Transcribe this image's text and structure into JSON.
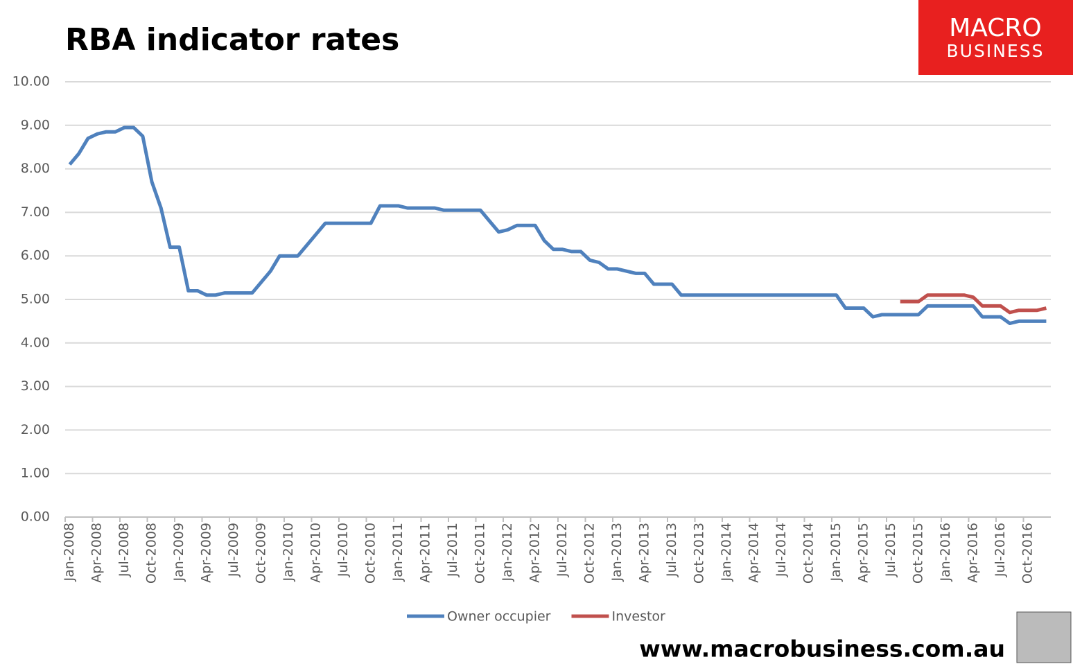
{
  "chart_data": {
    "type": "line",
    "title": "RBA indicator rates",
    "brand": {
      "line1": "MACRO",
      "line2": "BUSINESS"
    },
    "footer": "www.macrobusiness.com.au",
    "categories": [
      "Jan-2008",
      null,
      null,
      "Apr-2008",
      null,
      null,
      "Jul-2008",
      null,
      null,
      "Oct-2008",
      null,
      null,
      "Jan-2009",
      null,
      null,
      "Apr-2009",
      null,
      null,
      "Jul-2009",
      null,
      null,
      "Oct-2009",
      null,
      null,
      "Jan-2010",
      null,
      null,
      "Apr-2010",
      null,
      null,
      "Jul-2010",
      null,
      null,
      "Oct-2010",
      null,
      null,
      "Jan-2011",
      null,
      null,
      "Apr-2011",
      null,
      null,
      "Jul-2011",
      null,
      null,
      "Oct-2011",
      null,
      null,
      "Jan-2012",
      null,
      null,
      "Apr-2012",
      null,
      null,
      "Jul-2012",
      null,
      null,
      "Oct-2012",
      null,
      null,
      "Jan-2013",
      null,
      null,
      "Apr-2013",
      null,
      null,
      "Jul-2013",
      null,
      null,
      "Oct-2013",
      null,
      null,
      "Jan-2014",
      null,
      null,
      "Apr-2014",
      null,
      null,
      "Jul-2014",
      null,
      null,
      "Oct-2014",
      null,
      null,
      "Jan-2015",
      null,
      null,
      "Apr-2015",
      null,
      null,
      "Jul-2015",
      null,
      null,
      "Oct-2015",
      null,
      null,
      "Jan-2016",
      null,
      null,
      "Apr-2016",
      null,
      null,
      "Jul-2016",
      null,
      null,
      "Oct-2016",
      null,
      null
    ],
    "series": [
      {
        "name": "Owner occupier",
        "color": "#4f81bd",
        "values": [
          8.1,
          8.35,
          8.7,
          8.8,
          8.85,
          8.85,
          8.95,
          8.95,
          8.75,
          7.7,
          7.1,
          6.2,
          6.2,
          5.2,
          5.2,
          5.1,
          5.1,
          5.15,
          5.15,
          5.15,
          5.15,
          5.4,
          5.65,
          6.0,
          6.0,
          6.0,
          6.25,
          6.5,
          6.75,
          6.75,
          6.75,
          6.75,
          6.75,
          6.75,
          7.15,
          7.15,
          7.15,
          7.1,
          7.1,
          7.1,
          7.1,
          7.05,
          7.05,
          7.05,
          7.05,
          7.05,
          6.8,
          6.55,
          6.6,
          6.7,
          6.7,
          6.7,
          6.35,
          6.15,
          6.15,
          6.1,
          6.1,
          5.9,
          5.85,
          5.7,
          5.7,
          5.65,
          5.6,
          5.6,
          5.35,
          5.35,
          5.35,
          5.1,
          5.1,
          5.1,
          5.1,
          5.1,
          5.1,
          5.1,
          5.1,
          5.1,
          5.1,
          5.1,
          5.1,
          5.1,
          5.1,
          5.1,
          5.1,
          5.1,
          5.1,
          4.8,
          4.8,
          4.8,
          4.6,
          4.65,
          4.65,
          4.65,
          4.65,
          4.65,
          4.85,
          4.85,
          4.85,
          4.85,
          4.85,
          4.85,
          4.6,
          4.6,
          4.6,
          4.45,
          4.5,
          4.5,
          4.5,
          4.5
        ]
      },
      {
        "name": "Investor",
        "color": "#c0504d",
        "values": [
          null,
          null,
          null,
          null,
          null,
          null,
          null,
          null,
          null,
          null,
          null,
          null,
          null,
          null,
          null,
          null,
          null,
          null,
          null,
          null,
          null,
          null,
          null,
          null,
          null,
          null,
          null,
          null,
          null,
          null,
          null,
          null,
          null,
          null,
          null,
          null,
          null,
          null,
          null,
          null,
          null,
          null,
          null,
          null,
          null,
          null,
          null,
          null,
          null,
          null,
          null,
          null,
          null,
          null,
          null,
          null,
          null,
          null,
          null,
          null,
          null,
          null,
          null,
          null,
          null,
          null,
          null,
          null,
          null,
          null,
          null,
          null,
          null,
          null,
          null,
          null,
          null,
          null,
          null,
          null,
          null,
          null,
          null,
          null,
          null,
          null,
          null,
          null,
          null,
          null,
          null,
          4.95,
          4.95,
          4.95,
          5.1,
          5.1,
          5.1,
          5.1,
          5.1,
          5.05,
          4.85,
          4.85,
          4.85,
          4.7,
          4.75,
          4.75,
          4.75,
          4.8
        ]
      }
    ],
    "ylim": [
      0,
      10
    ],
    "yticks": [
      {
        "value": 0,
        "label": "0.00"
      },
      {
        "value": 1,
        "label": "1.00"
      },
      {
        "value": 2,
        "label": "2.00"
      },
      {
        "value": 3,
        "label": "3.00"
      },
      {
        "value": 4,
        "label": "4.00"
      },
      {
        "value": 5,
        "label": "5.00"
      },
      {
        "value": 6,
        "label": "6.00"
      },
      {
        "value": 7,
        "label": "7.00"
      },
      {
        "value": 8,
        "label": "8.00"
      },
      {
        "value": 9,
        "label": "9.00"
      },
      {
        "value": 10,
        "label": "10.00"
      }
    ],
    "grid": true,
    "legend": "bottom"
  }
}
